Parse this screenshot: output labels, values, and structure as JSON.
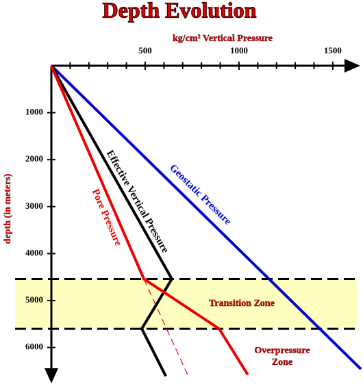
{
  "chart_data": {
    "type": "line",
    "title": "Depth Evolution",
    "x_label": "kg/cm² Vertical Pressure",
    "y_label": "depth (in meters)",
    "xlim": [
      0,
      1650
    ],
    "ylim": [
      0,
      6500
    ],
    "xticks": [
      500,
      1000,
      1500
    ],
    "xminor": [
      100,
      200,
      300,
      400,
      600,
      700,
      800,
      900,
      1100,
      1200,
      1300,
      1400,
      1600
    ],
    "yticks": [
      1000,
      2000,
      3000,
      4000,
      5000,
      6000
    ],
    "series": [
      {
        "name": "Geostatic Pressure",
        "color": "#0000cc",
        "x": [
          0,
          1650
        ],
        "values": [
          0,
          6460
        ]
      },
      {
        "name": "Effective Vertical Pressure",
        "color": "#000000",
        "x": [
          0,
          642,
          482,
          610
        ],
        "values": [
          0,
          4540,
          5600,
          6610
        ]
      },
      {
        "name": "Pore Pressure",
        "color": "#ee0000",
        "x": [
          0,
          493,
          894,
          1047
        ],
        "values": [
          0,
          4540,
          5600,
          6580
        ]
      },
      {
        "color": "#ee0000",
        "dashed": true,
        "x": [
          493,
          726
        ],
        "values": [
          4540,
          6580
        ]
      }
    ],
    "band": {
      "name": "Transition Zone",
      "from": 4540,
      "to": 5600,
      "color": "#ffffc0"
    },
    "annotations": [
      "Overpressure",
      "Zone"
    ]
  }
}
